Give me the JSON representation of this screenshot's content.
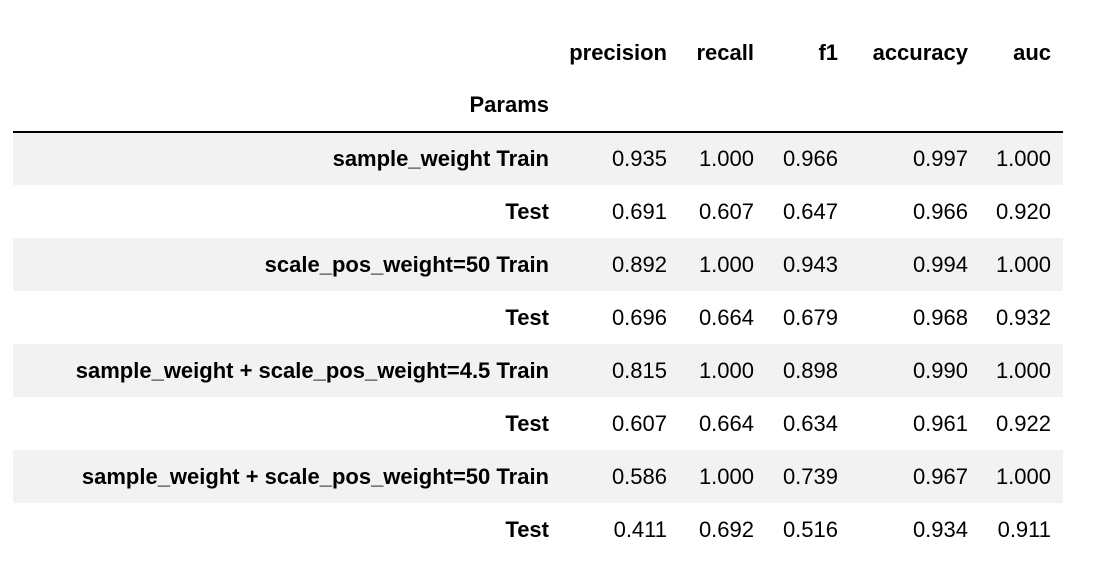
{
  "table": {
    "columns": [
      "precision",
      "recall",
      "f1",
      "accuracy",
      "auc"
    ],
    "index_name": "Params",
    "rows": [
      {
        "group": "sample_weight",
        "split": "Train",
        "values": [
          "0.935",
          "1.000",
          "0.966",
          "0.997",
          "1.000"
        ]
      },
      {
        "group": "",
        "split": "Test",
        "values": [
          "0.691",
          "0.607",
          "0.647",
          "0.966",
          "0.920"
        ]
      },
      {
        "group": "scale_pos_weight=50",
        "split": "Train",
        "values": [
          "0.892",
          "1.000",
          "0.943",
          "0.994",
          "1.000"
        ]
      },
      {
        "group": "",
        "split": "Test",
        "values": [
          "0.696",
          "0.664",
          "0.679",
          "0.968",
          "0.932"
        ]
      },
      {
        "group": "sample_weight + scale_pos_weight=4.5",
        "split": "Train",
        "values": [
          "0.815",
          "1.000",
          "0.898",
          "0.990",
          "1.000"
        ]
      },
      {
        "group": "",
        "split": "Test",
        "values": [
          "0.607",
          "0.664",
          "0.634",
          "0.961",
          "0.922"
        ]
      },
      {
        "group": "sample_weight + scale_pos_weight=50",
        "split": "Train",
        "values": [
          "0.586",
          "1.000",
          "0.739",
          "0.967",
          "1.000"
        ]
      },
      {
        "group": "",
        "split": "Test",
        "values": [
          "0.411",
          "0.692",
          "0.516",
          "0.934",
          "0.911"
        ]
      }
    ]
  }
}
